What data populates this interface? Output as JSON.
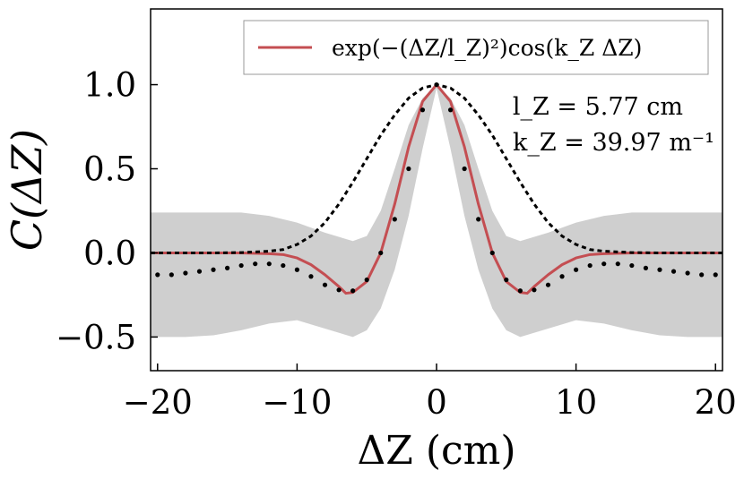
{
  "chart_data": {
    "type": "line",
    "title": "",
    "xlabel": "ΔZ (cm)",
    "ylabel": "C(ΔZ)",
    "xlim": [
      -20.5,
      20.5
    ],
    "ylim": [
      -0.7,
      1.45
    ],
    "x_ticks": [
      -20,
      -10,
      0,
      10,
      20
    ],
    "x_tick_labels": [
      "−20",
      "−10",
      "0",
      "10",
      "20"
    ],
    "y_ticks": [
      -0.5,
      0.0,
      0.5,
      1.0
    ],
    "y_tick_labels": [
      "−0.5",
      "0.0",
      "0.5",
      "1.0"
    ],
    "legend": {
      "position": "top-right",
      "entries": [
        "exp(−(ΔZ/l_Z)²)cos(k_Z ΔZ)"
      ]
    },
    "annotations": [
      "l_Z = 5.77 cm",
      "k_Z = 39.97 m⁻¹"
    ],
    "series": [
      {
        "name": "uncertainty band",
        "style": "band",
        "color": "#cccccc",
        "x": [
          -20.5,
          -18,
          -16,
          -14,
          -12,
          -10,
          -8,
          -6,
          -5,
          -4,
          -3,
          -2,
          -1,
          0,
          1,
          2,
          3,
          4,
          5,
          6,
          8,
          10,
          12,
          14,
          16,
          18,
          20.5
        ],
        "lower": [
          -0.5,
          -0.5,
          -0.49,
          -0.46,
          -0.42,
          -0.4,
          -0.45,
          -0.5,
          -0.46,
          -0.33,
          -0.1,
          0.22,
          0.62,
          0.98,
          0.62,
          0.22,
          -0.1,
          -0.33,
          -0.46,
          -0.5,
          -0.45,
          -0.4,
          -0.42,
          -0.46,
          -0.49,
          -0.5,
          -0.5
        ],
        "upper": [
          0.24,
          0.24,
          0.24,
          0.24,
          0.22,
          0.18,
          0.12,
          0.07,
          0.1,
          0.25,
          0.5,
          0.76,
          0.92,
          1.0,
          0.92,
          0.76,
          0.5,
          0.25,
          0.1,
          0.07,
          0.12,
          0.18,
          0.22,
          0.24,
          0.24,
          0.24,
          0.24
        ]
      },
      {
        "name": "exp(−(ΔZ/l_Z)²)cos(k_Z ΔZ)",
        "style": "solid",
        "color": "#c44e52",
        "x": [
          -20.5,
          -14,
          -12,
          -11,
          -10,
          -9,
          -8,
          -7,
          -6.5,
          -6,
          -5,
          -4,
          -3,
          -2,
          -1,
          0,
          1,
          2,
          3,
          4,
          5,
          6,
          6.5,
          7,
          8,
          9,
          10,
          11,
          12,
          14,
          20.5
        ],
        "y": [
          0.0,
          0.0,
          -0.005,
          -0.01,
          -0.03,
          -0.07,
          -0.13,
          -0.2,
          -0.24,
          -0.235,
          -0.17,
          0.0,
          0.29,
          0.63,
          0.9,
          1.0,
          0.9,
          0.63,
          0.29,
          0.0,
          -0.17,
          -0.235,
          -0.24,
          -0.2,
          -0.13,
          -0.07,
          -0.03,
          -0.01,
          -0.005,
          0.0,
          0.0
        ]
      },
      {
        "name": "Gaussian",
        "style": "dashed",
        "color": "#000000",
        "x": [
          -20.5,
          -18,
          -16,
          -14,
          -12,
          -11,
          -10,
          -9,
          -8,
          -7,
          -6,
          -5,
          -4,
          -3,
          -2,
          -1,
          0,
          1,
          2,
          3,
          4,
          5,
          6,
          7,
          8,
          9,
          10,
          11,
          12,
          14,
          16,
          18,
          20.5
        ],
        "y": [
          0.0,
          0.0,
          0.0,
          0.002,
          0.01,
          0.02,
          0.05,
          0.1,
          0.18,
          0.29,
          0.42,
          0.56,
          0.7,
          0.82,
          0.92,
          0.98,
          1.0,
          0.98,
          0.92,
          0.82,
          0.7,
          0.56,
          0.42,
          0.29,
          0.18,
          0.1,
          0.05,
          0.02,
          0.01,
          0.002,
          0.0,
          0.0,
          0.0
        ]
      },
      {
        "name": "measured",
        "style": "dotted",
        "color": "#000000",
        "x": [
          -20,
          -19,
          -18,
          -17,
          -16,
          -15,
          -14,
          -13,
          -12,
          -11,
          -10,
          -9,
          -8,
          -7,
          -6,
          -5,
          -4,
          -3,
          -2,
          -1,
          0,
          1,
          2,
          3,
          4,
          5,
          6,
          7,
          8,
          9,
          10,
          11,
          12,
          13,
          14,
          15,
          16,
          17,
          18,
          19,
          20
        ],
        "y": [
          -0.13,
          -0.13,
          -0.12,
          -0.11,
          -0.1,
          -0.09,
          -0.075,
          -0.065,
          -0.065,
          -0.075,
          -0.1,
          -0.14,
          -0.19,
          -0.22,
          -0.225,
          -0.16,
          0.0,
          0.2,
          0.5,
          0.85,
          1.0,
          0.85,
          0.5,
          0.2,
          0.0,
          -0.16,
          -0.225,
          -0.22,
          -0.19,
          -0.14,
          -0.1,
          -0.075,
          -0.065,
          -0.065,
          -0.075,
          -0.09,
          -0.1,
          -0.11,
          -0.12,
          -0.13,
          -0.13
        ]
      }
    ]
  }
}
